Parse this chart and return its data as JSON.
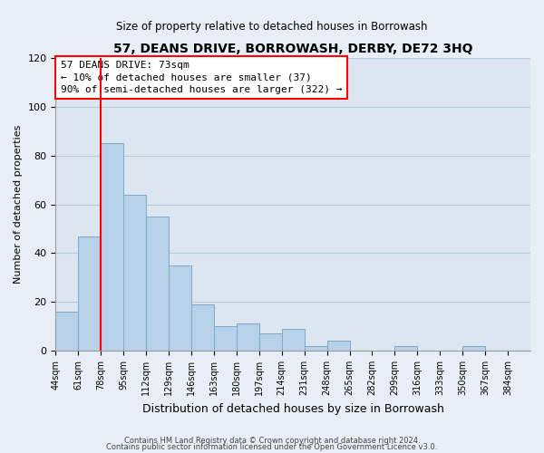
{
  "title": "57, DEANS DRIVE, BORROWASH, DERBY, DE72 3HQ",
  "subtitle": "Size of property relative to detached houses in Borrowash",
  "xlabel": "Distribution of detached houses by size in Borrowash",
  "ylabel": "Number of detached properties",
  "bar_labels": [
    "44sqm",
    "61sqm",
    "78sqm",
    "95sqm",
    "112sqm",
    "129sqm",
    "146sqm",
    "163sqm",
    "180sqm",
    "197sqm",
    "214sqm",
    "231sqm",
    "248sqm",
    "265sqm",
    "282sqm",
    "299sqm",
    "316sqm",
    "333sqm",
    "350sqm",
    "367sqm",
    "384sqm"
  ],
  "bar_values": [
    16,
    47,
    85,
    64,
    55,
    35,
    19,
    10,
    11,
    7,
    9,
    2,
    4,
    0,
    0,
    2,
    0,
    0,
    2,
    0,
    0
  ],
  "bar_color": "#b8d0e8",
  "bar_edge_color": "#7aaac8",
  "ylim": [
    0,
    120
  ],
  "yticks": [
    0,
    20,
    40,
    60,
    80,
    100,
    120
  ],
  "red_line_x": 2,
  "annotation_line1": "57 DEANS DRIVE: 73sqm",
  "annotation_line2": "← 10% of detached houses are smaller (37)",
  "annotation_line3": "90% of semi-detached houses are larger (322) →",
  "footer_line1": "Contains HM Land Registry data © Crown copyright and database right 2024.",
  "footer_line2": "Contains public sector information licensed under the Open Government Licence v3.0.",
  "background_color": "#e8eef6",
  "plot_bg_color": "#dce6f0",
  "grid_color": "#b8cce0"
}
